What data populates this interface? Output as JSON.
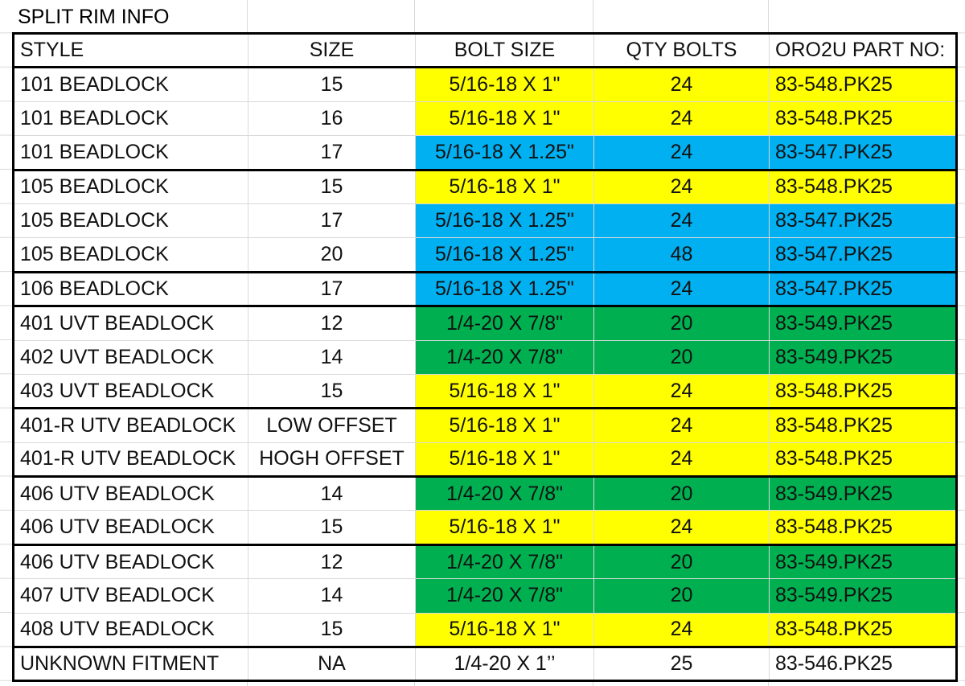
{
  "sheet": {
    "title": "SPLIT RIM INFO",
    "table": {
      "header": [
        "STYLE",
        "SIZE",
        "BOLT SIZE",
        "QTY BOLTS",
        "ORO2U PART NO:"
      ],
      "rows": [
        [
          "101 BEADLOCK",
          "15",
          "5/16-18 X 1\"",
          "24",
          "83-548.PK25"
        ],
        [
          "101 BEADLOCK",
          "16",
          "5/16-18 X 1\"",
          "24",
          "83-548.PK25"
        ],
        [
          "101 BEADLOCK",
          "17",
          "5/16-18 X 1.25\"",
          "24",
          "83-547.PK25"
        ],
        [
          "105 BEADLOCK",
          "15",
          "5/16-18 X 1\"",
          "24",
          "83-548.PK25"
        ],
        [
          "105 BEADLOCK",
          "17",
          "5/16-18 X 1.25\"",
          "24",
          "83-547.PK25"
        ],
        [
          "105 BEADLOCK",
          "20",
          "5/16-18 X 1.25\"",
          "48",
          "83-547.PK25"
        ],
        [
          "106 BEADLOCK",
          "17",
          "5/16-18 X 1.25\"",
          "24",
          "83-547.PK25"
        ],
        [
          "401 UVT BEADLOCK",
          "12",
          "1/4-20 X 7/8\"",
          "20",
          "83-549.PK25"
        ],
        [
          "402 UVT BEADLOCK",
          "14",
          "1/4-20 X 7/8\"",
          "20",
          "83-549.PK25"
        ],
        [
          "403 UVT BEADLOCK",
          "15",
          "5/16-18 X 1\"",
          "24",
          "83-548.PK25"
        ],
        [
          "401-R UTV BEADLOCK",
          "LOW OFFSET",
          "5/16-18 X 1\"",
          "24",
          "83-548.PK25"
        ],
        [
          "401-R UTV BEADLOCK",
          "HOGH OFFSET",
          "5/16-18 X 1\"",
          "24",
          "83-548.PK25"
        ],
        [
          "406 UTV BEADLOCK",
          "14",
          "1/4-20 X 7/8\"",
          "20",
          "83-549.PK25"
        ],
        [
          "406 UTV BEADLOCK",
          "15",
          "5/16-18 X 1\"",
          "24",
          "83-548.PK25"
        ],
        [
          "406 UTV BEADLOCK",
          "12",
          "1/4-20 X 7/8\"",
          "20",
          "83-549.PK25"
        ],
        [
          "407 UTV BEADLOCK",
          "14",
          "1/4-20 X 7/8\"",
          "20",
          "83-549.PK25"
        ],
        [
          "408 UTV BEADLOCK",
          "15",
          "5/16-18 X 1\"",
          "24",
          "83-548.PK25"
        ],
        [
          "UNKNOWN FITMENT",
          "NA",
          "1/4-20 X 1’’",
          "25",
          "83-546.PK25"
        ]
      ]
    }
  }
}
